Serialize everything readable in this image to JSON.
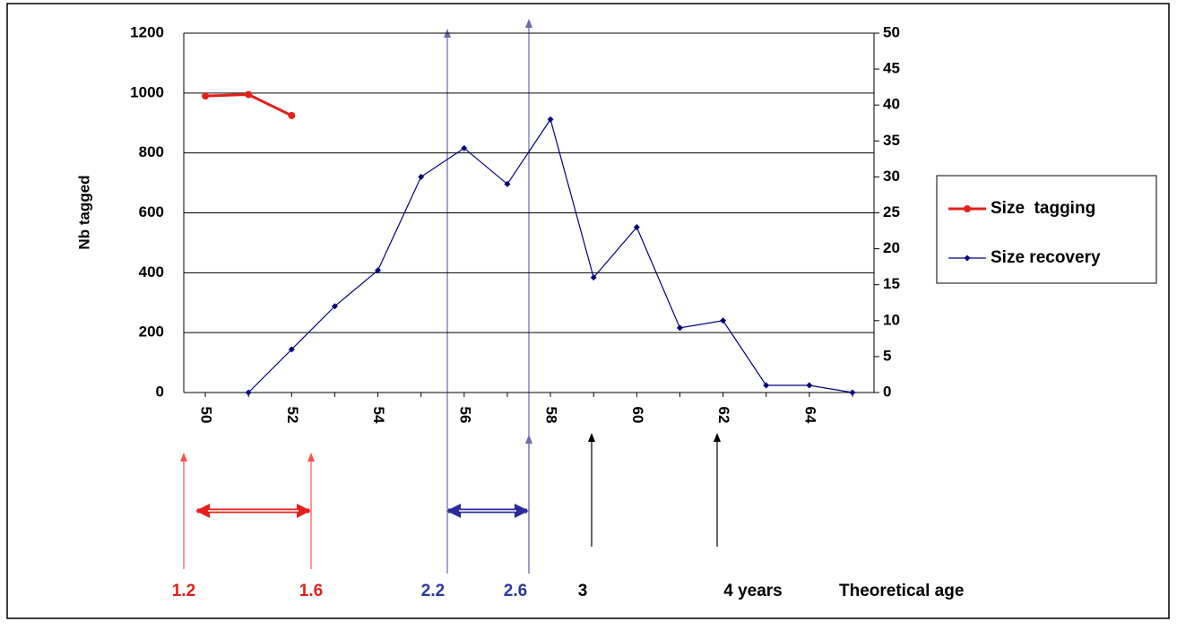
{
  "chart_data": {
    "type": "line",
    "y_label": "Nb tagged",
    "categories": [
      "50",
      null,
      "52",
      null,
      "54",
      null,
      "56",
      null,
      "58",
      null,
      "60",
      null,
      "62",
      null,
      "64",
      null
    ],
    "series": [
      {
        "name": "Size  tagging",
        "color": "#e3201c",
        "values": [
          990,
          995,
          925,
          null,
          null,
          null,
          null,
          null,
          null,
          null,
          null,
          null,
          null,
          null,
          null,
          null
        ]
      },
      {
        "name": "Size recovery",
        "color": "#000080",
        "axis": "y2",
        "values": [
          null,
          0,
          6,
          12,
          17,
          30,
          34,
          29,
          38,
          16,
          23,
          9,
          10,
          1,
          1,
          0
        ]
      }
    ],
    "ylim": [
      0,
      1200
    ],
    "yticks": [
      0,
      200,
      400,
      600,
      800,
      1000,
      1200
    ],
    "y2lim": [
      0,
      50
    ],
    "y2ticks": [
      0,
      5,
      10,
      15,
      20,
      25,
      30,
      35,
      40,
      45,
      50
    ],
    "grid": true,
    "legend": "right",
    "annotations": [
      "1.2",
      "1.6",
      "2.2",
      "2.6",
      "3",
      "4 years",
      "Theoretical age"
    ]
  }
}
